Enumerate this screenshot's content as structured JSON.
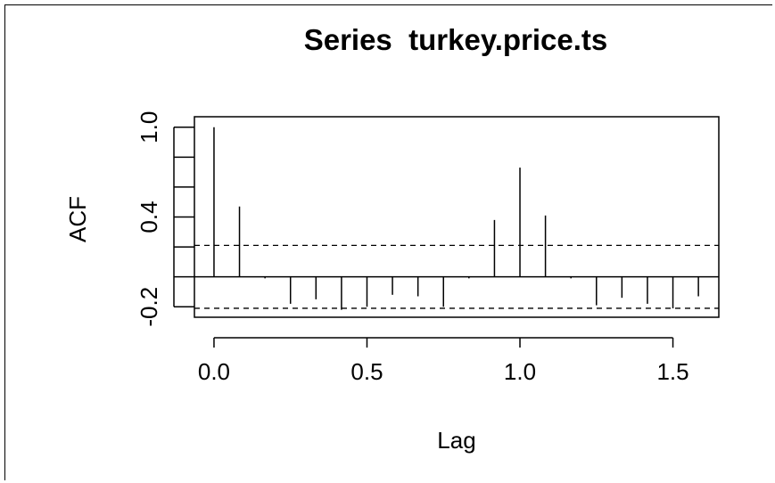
{
  "chart_data": {
    "type": "bar",
    "title": "Series  turkey.price.ts",
    "xlabel": "Lag",
    "ylabel": "ACF",
    "xlim": [
      -0.064,
      1.65
    ],
    "ylim": [
      -0.27,
      1.07
    ],
    "x_ticks": [
      {
        "value": 0.0,
        "label": "0.0"
      },
      {
        "value": 0.5,
        "label": "0.5"
      },
      {
        "value": 1.0,
        "label": "1.0"
      },
      {
        "value": 1.5,
        "label": "1.5"
      }
    ],
    "y_ticks": [
      -0.2,
      0.0,
      0.2,
      0.4,
      0.6,
      0.8,
      1.0
    ],
    "y_tick_labels": [
      {
        "value": -0.2,
        "label": "-0.2"
      },
      {
        "value": 0.4,
        "label": "0.4"
      },
      {
        "value": 1.0,
        "label": "1.0"
      }
    ],
    "confidence_band": 0.21,
    "lags": [
      0.0,
      0.0833,
      0.1667,
      0.25,
      0.3333,
      0.4167,
      0.5,
      0.5833,
      0.6667,
      0.75,
      0.8333,
      0.9167,
      1.0,
      1.0833,
      1.1667,
      1.25,
      1.3333,
      1.4167,
      1.5,
      1.5833
    ],
    "acf": [
      1.0,
      0.47,
      -0.01,
      -0.18,
      -0.15,
      -0.22,
      -0.2,
      -0.12,
      -0.13,
      -0.2,
      -0.01,
      0.38,
      0.73,
      0.41,
      -0.01,
      -0.19,
      -0.14,
      -0.18,
      -0.21,
      -0.13
    ],
    "grid": false,
    "line_color": "#000000",
    "band_color": "#000000"
  }
}
